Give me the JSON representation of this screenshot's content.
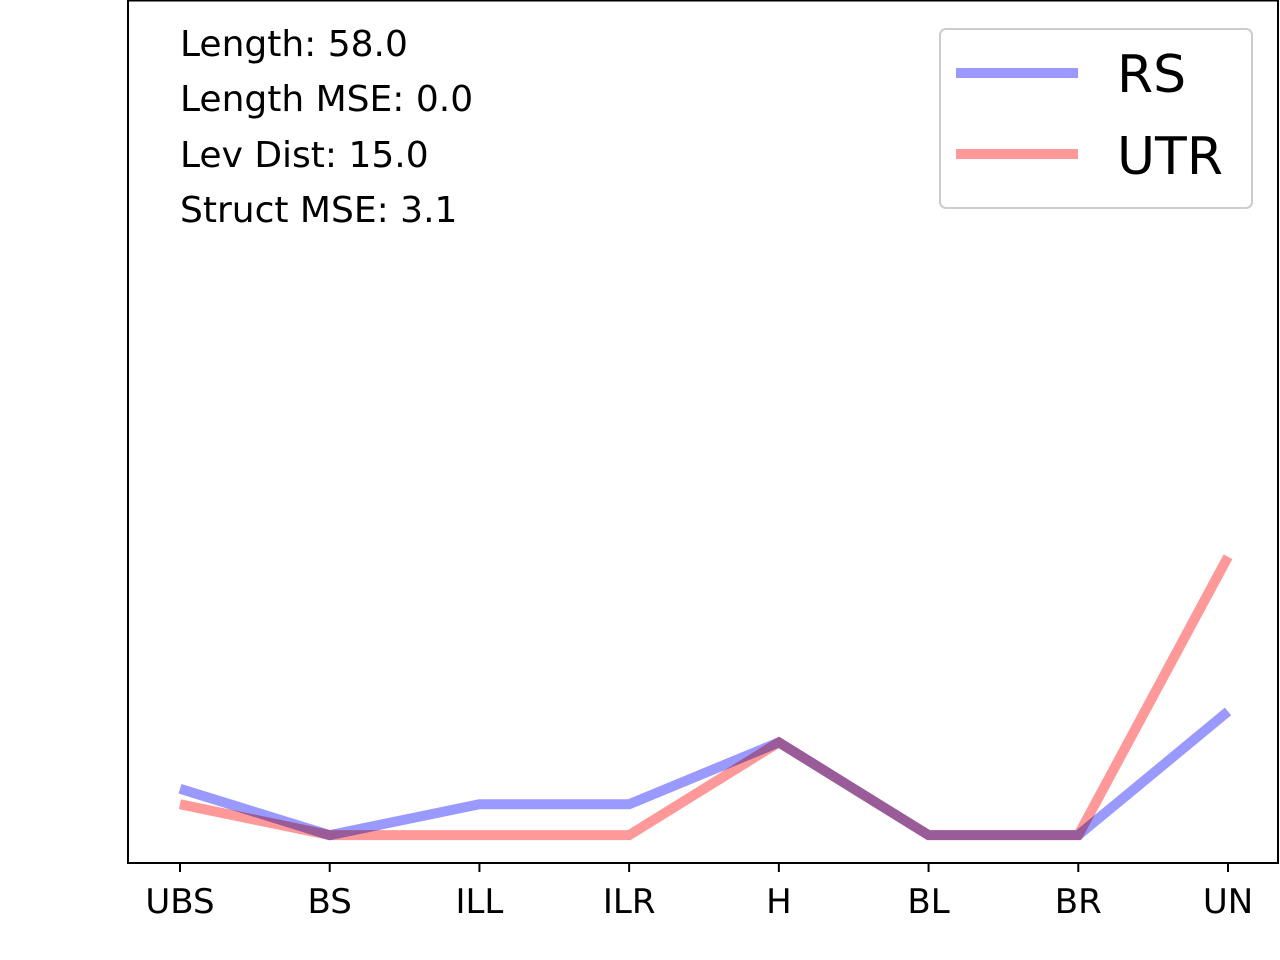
{
  "chart_data": {
    "type": "line",
    "title": "",
    "xlabel": "",
    "ylabel": "",
    "categories": [
      "UBS",
      "BS",
      "ILL",
      "ILR",
      "H",
      "BL",
      "BR",
      "UN"
    ],
    "series": [
      {
        "name": "RS",
        "color": "#9999ff",
        "values": [
          3,
          0,
          2,
          2,
          6,
          0,
          0,
          8
        ]
      },
      {
        "name": "UTR",
        "color": "#ff9999",
        "values": [
          2,
          0,
          0,
          0,
          6,
          0,
          0,
          18
        ]
      }
    ],
    "ylim": [
      -1.8,
      54
    ],
    "y_ticks_shown": false,
    "grid": false,
    "legend_position": "top-right",
    "annotations": [
      "Length: 58.0",
      "Length MSE: 0.0",
      "Lev Dist: 15.0",
      "Struct MSE: 3.1"
    ]
  }
}
